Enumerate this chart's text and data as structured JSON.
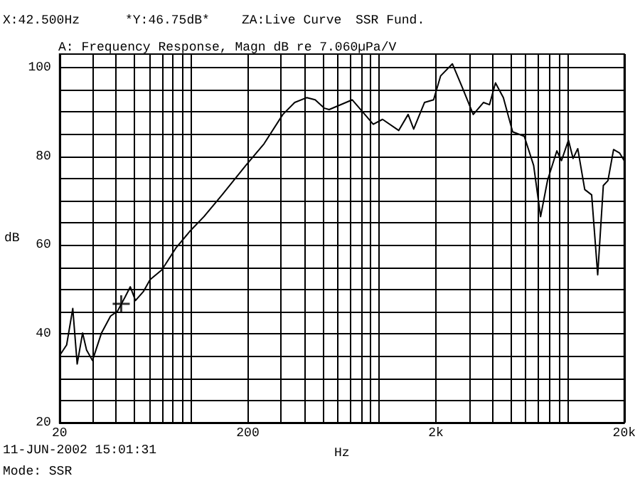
{
  "chart_data": {
    "type": "line",
    "title": "A: Frequency Response, Magn dB re 7.060µPa/V",
    "xlabel": "Hz",
    "ylabel": "dB",
    "log": "x",
    "annotations": [
      "X:42.500Hz",
      "*Y:46.75dB*",
      "ZA:Live Curve",
      "SSR Fund.",
      "11-JUN-2002 15:01:31",
      "Mode: SSR"
    ],
    "xlim": [
      20,
      20000
    ],
    "ylim": [
      20,
      103
    ],
    "xticks": [
      20,
      {
        "value": 30,
        "label": null
      },
      {
        "value": 40,
        "label": null
      },
      {
        "value": 50,
        "label": null
      },
      {
        "value": 60,
        "label": null
      },
      {
        "value": 70,
        "label": null
      },
      {
        "value": 80,
        "label": null
      },
      {
        "value": 90,
        "label": null
      },
      {
        "value": 100,
        "label": null
      },
      200,
      {
        "value": 300,
        "label": null
      },
      {
        "value": 400,
        "label": null
      },
      {
        "value": 500,
        "label": null
      },
      {
        "value": 600,
        "label": null
      },
      {
        "value": 700,
        "label": null
      },
      {
        "value": 800,
        "label": null
      },
      {
        "value": 900,
        "label": null
      },
      {
        "value": 1000,
        "label": null
      },
      {
        "value": 2000,
        "label": "2k"
      },
      {
        "value": 3000,
        "label": null
      },
      {
        "value": 4000,
        "label": null
      },
      {
        "value": 5000,
        "label": null
      },
      {
        "value": 6000,
        "label": null
      },
      {
        "value": 7000,
        "label": null
      },
      {
        "value": 8000,
        "label": null
      },
      {
        "value": 9000,
        "label": null
      },
      {
        "value": 10000,
        "label": null
      },
      {
        "value": 20000,
        "label": "20k"
      }
    ],
    "yticks": [
      20,
      {
        "value": 25,
        "label": null
      },
      {
        "value": 30,
        "label": null
      },
      {
        "value": 35,
        "label": null
      },
      40,
      {
        "value": 45,
        "label": null
      },
      {
        "value": 50,
        "label": null
      },
      {
        "value": 55,
        "label": null
      },
      60,
      {
        "value": 65,
        "label": null
      },
      {
        "value": 70,
        "label": null
      },
      {
        "value": 75,
        "label": null
      },
      80,
      {
        "value": 85,
        "label": null
      },
      {
        "value": 90,
        "label": null
      },
      {
        "value": 95,
        "label": null
      },
      100
    ],
    "grid": true,
    "series": [
      {
        "color": "#000000",
        "marker": "none",
        "line_style": "solid",
        "x": [
          20,
          21.8,
          23.5,
          24.8,
          26.5,
          27.8,
          29.9,
          33.4,
          37.3,
          40.6,
          44.7,
          47.5,
          50.6,
          55.7,
          60.5,
          69.9,
          82.9,
          98.4,
          117,
          146,
          195,
          244,
          307,
          355,
          412,
          456,
          511,
          541,
          718,
          928,
          1040,
          1268,
          1422,
          1522,
          1737,
          1942,
          2117,
          2443,
          2734,
          3154,
          3573,
          3846,
          4140,
          4560,
          5107,
          5888,
          6605,
          7190,
          7830,
          8773,
          9283,
          10110,
          10700,
          11330,
          12340,
          13430,
          14460,
          15490,
          16390,
          17560,
          18920,
          20000
        ],
        "values": [
          35.1,
          37.5,
          45.7,
          33.2,
          40.2,
          36.4,
          34,
          40.2,
          44,
          45.1,
          48.4,
          50.6,
          47.5,
          49.5,
          52.2,
          54.4,
          59.3,
          63.1,
          66.4,
          71.3,
          77.9,
          82.8,
          89.4,
          92.1,
          93.2,
          92.7,
          90.8,
          90.5,
          92.7,
          87.2,
          88.3,
          85.8,
          89.4,
          86.1,
          92.1,
          92.7,
          98.1,
          100.8,
          95.9,
          89.4,
          92.1,
          91.6,
          96.5,
          93.2,
          85.5,
          84.5,
          77.9,
          66.4,
          74.6,
          81.2,
          79,
          83.6,
          79.5,
          81.7,
          72.5,
          71.3,
          53.3,
          73.4,
          74.5,
          81.5,
          80.7,
          79
        ]
      },
      {
        "type": "scatter",
        "color": "#000000",
        "marker": "cross",
        "x": [
          42.5
        ],
        "values": [
          46.75
        ]
      }
    ]
  }
}
